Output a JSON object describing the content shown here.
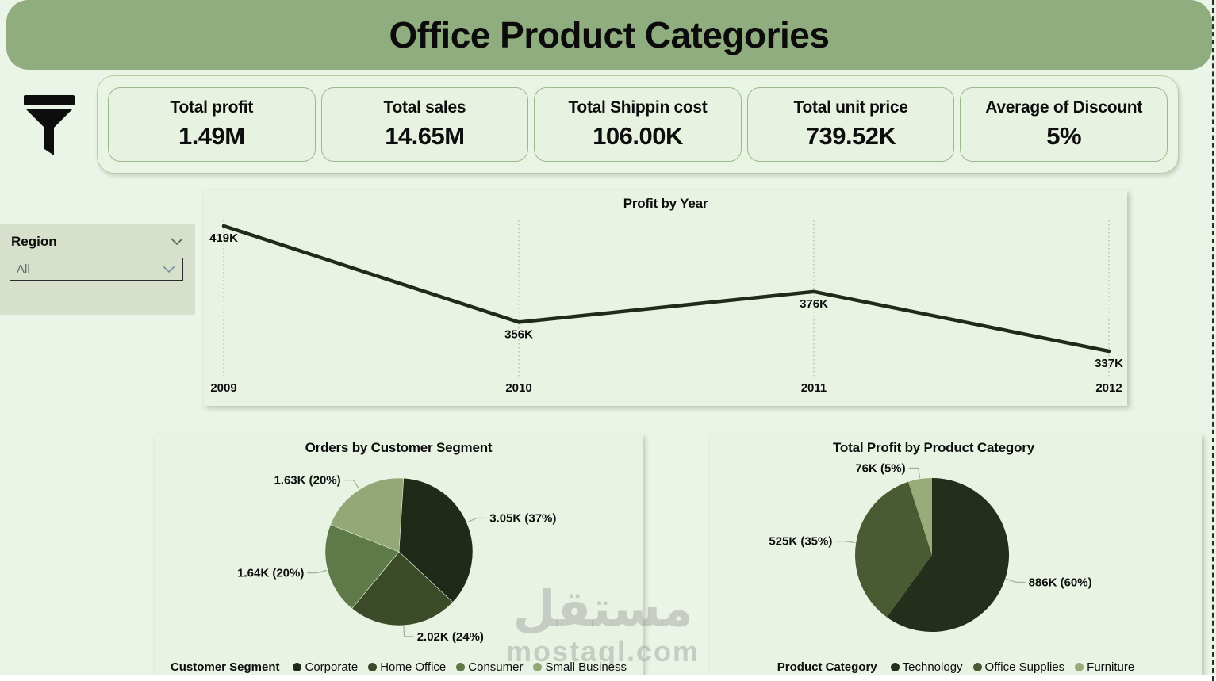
{
  "page": {
    "title": "Office Product Categories",
    "watermark_ar": "مستقل",
    "watermark_latin": "mostaql.com"
  },
  "kpis": [
    {
      "label": "Total profit",
      "value": "1.49M"
    },
    {
      "label": "Total sales",
      "value": "14.65M"
    },
    {
      "label": "Total Shippin cost",
      "value": "106.00K"
    },
    {
      "label": "Total unit price",
      "value": "739.52K"
    },
    {
      "label": "Average of Discount",
      "value": "5%"
    }
  ],
  "slicer": {
    "title": "Region",
    "value": "All"
  },
  "colors": {
    "banner": "#8fad7f",
    "page_bg": "#eaf4e7",
    "panel_bg": "#e9f3e3",
    "kpi_bg": "#e7f3e0",
    "kpi_border": "#9cb98b",
    "slicer_bg": "#d6e0ca",
    "line": "#212a16",
    "gridline": "#b7c2af",
    "connector": "#a3ad9c"
  },
  "chart_data": [
    {
      "type": "line",
      "title": "Profit by Year",
      "x": [
        "2009",
        "2010",
        "2011",
        "2012"
      ],
      "values": [
        419,
        356,
        376,
        337
      ],
      "value_labels": [
        "419K",
        "356K",
        "376K",
        "337K"
      ],
      "ylabel": "Profit",
      "unit": "K",
      "legend_position": "none",
      "grid": "dotted-vertical-only",
      "line_color": "#212a16"
    },
    {
      "type": "pie",
      "title": "Orders by Customer Segment",
      "legend_title": "Customer Segment",
      "legend_position": "bottom",
      "slices": [
        {
          "name": "Corporate",
          "value_label": "3.05K",
          "pct": 37,
          "color": "#1f2a18"
        },
        {
          "name": "Home Office",
          "value_label": "2.02K",
          "pct": 24,
          "color": "#3b4a27"
        },
        {
          "name": "Consumer",
          "value_label": "1.64K",
          "pct": 20,
          "color": "#5f7a49"
        },
        {
          "name": "Small Business",
          "value_label": "1.63K",
          "pct": 20,
          "color": "#94a877"
        }
      ]
    },
    {
      "type": "pie",
      "title": "Total Profit by Product Category",
      "legend_title": "Product Category",
      "legend_position": "bottom",
      "slices": [
        {
          "name": "Technology",
          "value_label": "886K",
          "pct": 60,
          "color": "#232e1b"
        },
        {
          "name": "Office Supplies",
          "value_label": "525K",
          "pct": 35,
          "color": "#4a5a33"
        },
        {
          "name": "Furniture",
          "value_label": "76K",
          "pct": 5,
          "color": "#99ab79"
        }
      ]
    }
  ]
}
